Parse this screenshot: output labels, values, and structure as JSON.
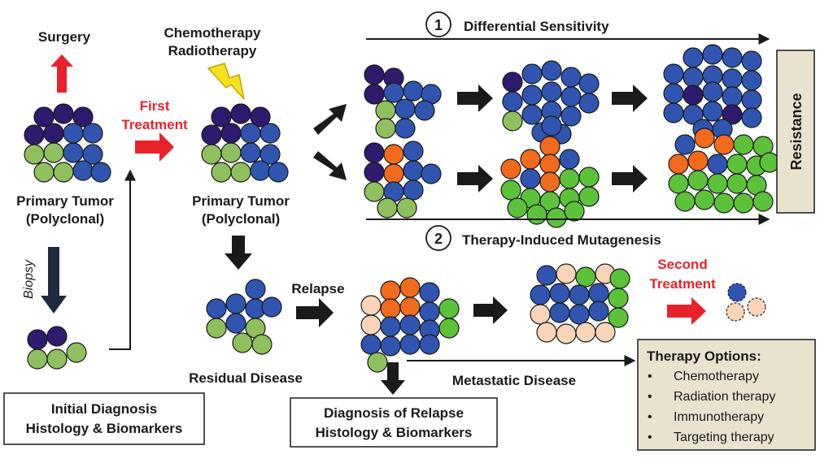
{
  "labels": {
    "surgery": "Surgery",
    "chemo_line1": "Chemotherapy",
    "chemo_line2": "Radiotherapy",
    "first_treatment_line1": "First",
    "first_treatment_line2": "Treatment",
    "primary_tumor_1_line1": "Primary Tumor",
    "primary_tumor_1_line2": "(Polyclonal)",
    "primary_tumor_2_line1": "Primary Tumor",
    "primary_tumor_2_line2": "(Polyclonal)",
    "biopsy": "Biopsy",
    "residual_disease": "Residual Disease",
    "relapse": "Relapse",
    "metastatic_disease": "Metastatic Disease",
    "second_treatment_line1": "Second",
    "second_treatment_line2": "Treatment",
    "resistance": "Resistance",
    "pathway1_number": "1",
    "pathway1_label": "Differential Sensitivity",
    "pathway2_number": "2",
    "pathway2_label": "Therapy-Induced Mutagenesis"
  },
  "boxes": {
    "initial_diagnosis_line1": "Initial Diagnosis",
    "initial_diagnosis_line2": "Histology & Biomarkers",
    "relapse_diagnosis_line1": "Diagnosis of Relapse",
    "relapse_diagnosis_line2": "Histology & Biomarkers"
  },
  "therapy_options": {
    "title": "Therapy Options:",
    "items": [
      "Chemotherapy",
      "Radiation therapy",
      "Immunotherapy",
      "Targeting therapy"
    ]
  },
  "colors": {
    "dark_purple": "#2e1a6e",
    "blue": "#2f55b0",
    "light_green": "#8fbf5e",
    "bright_green": "#5cc23a",
    "orange": "#f26a1b",
    "peach": "#f9d4b8",
    "red_arrow": "#e8222b",
    "black_arrow": "#1a1a1a",
    "box_fill": "#e8e2cf",
    "bolt": "#f7e11e"
  }
}
